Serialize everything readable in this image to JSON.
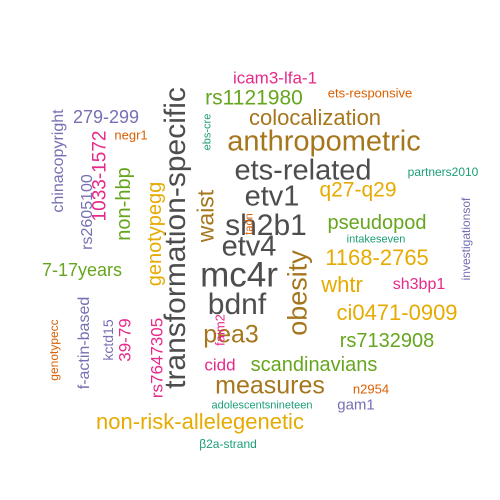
{
  "palette": {
    "gray": "#4d4d4d",
    "brown": "#a6761d",
    "green": "#66a61e",
    "gold": "#e6ab02",
    "magenta": "#e7298a",
    "orange": "#d95f02",
    "purple": "#7570b3",
    "teal": "#1b9e77"
  },
  "words": [
    {
      "text": "transformation-specific",
      "color": "gray",
      "rot": -90
    },
    {
      "text": "mc4r",
      "color": "gray",
      "rot": 0
    },
    {
      "text": "etv4",
      "color": "gray",
      "rot": 0
    },
    {
      "text": "sh2b1",
      "color": "gray",
      "rot": 0
    },
    {
      "text": "etv1",
      "color": "gray",
      "rot": 0
    },
    {
      "text": "ets-related",
      "color": "gray",
      "rot": 0
    },
    {
      "text": "bdnf",
      "color": "gray",
      "rot": 0
    },
    {
      "text": "anthropometric",
      "color": "brown",
      "rot": 0
    },
    {
      "text": "measures",
      "color": "brown",
      "rot": 0
    },
    {
      "text": "obesity",
      "color": "brown",
      "rot": -90
    },
    {
      "text": "colocalization",
      "color": "brown",
      "rot": 0
    },
    {
      "text": "waist",
      "color": "brown",
      "rot": -90
    },
    {
      "text": "pea3",
      "color": "brown",
      "rot": 0
    },
    {
      "text": "non-risk-allelegenetic",
      "color": "gold",
      "rot": 0
    },
    {
      "text": "ci0471-0909",
      "color": "gold",
      "rot": 0
    },
    {
      "text": "1168-2765",
      "color": "gold",
      "rot": 0
    },
    {
      "text": "q27-q29",
      "color": "gold",
      "rot": 0
    },
    {
      "text": "whtr",
      "color": "gold",
      "rot": 0
    },
    {
      "text": "genotypegg",
      "color": "gold",
      "rot": -90
    },
    {
      "text": "rs1121980",
      "color": "green",
      "rot": 0
    },
    {
      "text": "pseudopod",
      "color": "green",
      "rot": 0
    },
    {
      "text": "scandinavians",
      "color": "green",
      "rot": 0
    },
    {
      "text": "rs7132908",
      "color": "green",
      "rot": 0
    },
    {
      "text": "7-17years",
      "color": "green",
      "rot": 0
    },
    {
      "text": "non-hbp",
      "color": "green",
      "rot": -90
    },
    {
      "text": "icam3-lfa-1",
      "color": "magenta",
      "rot": 0
    },
    {
      "text": "1033-1572",
      "color": "magenta",
      "rot": -90
    },
    {
      "text": "rs7647305",
      "color": "magenta",
      "rot": -90
    },
    {
      "text": "39-79",
      "color": "magenta",
      "rot": -90
    },
    {
      "text": "cidd",
      "color": "magenta",
      "rot": 0
    },
    {
      "text": "sh3bp1",
      "color": "magenta",
      "rot": 0
    },
    {
      "text": "faim2",
      "color": "magenta",
      "rot": -90
    },
    {
      "text": "ets-responsive",
      "color": "orange",
      "rot": 0
    },
    {
      "text": "negr1",
      "color": "orange",
      "rot": 0
    },
    {
      "text": "n2954",
      "color": "orange",
      "rot": 0
    },
    {
      "text": "genotypecc",
      "color": "orange",
      "rot": -90
    },
    {
      "text": "tadn",
      "color": "orange",
      "rot": -90
    },
    {
      "text": "279-299",
      "color": "purple",
      "rot": 0
    },
    {
      "text": "chinacopyright",
      "color": "purple",
      "rot": -90
    },
    {
      "text": "rs2605100",
      "color": "purple",
      "rot": -90
    },
    {
      "text": "f-actin-based",
      "color": "purple",
      "rot": -90
    },
    {
      "text": "kctd15",
      "color": "purple",
      "rot": -90
    },
    {
      "text": "gam1",
      "color": "purple",
      "rot": 0
    },
    {
      "text": "investigationsof",
      "color": "purple",
      "rot": -90
    },
    {
      "text": "partners2010",
      "color": "teal",
      "rot": 0
    },
    {
      "text": "intakeseven",
      "color": "teal",
      "rot": 0
    },
    {
      "text": "adolescentsnineteen",
      "color": "teal",
      "rot": 0
    },
    {
      "text": "β2a-strand",
      "color": "teal",
      "rot": 0
    },
    {
      "text": "ebs-cre",
      "color": "teal",
      "rot": -90
    }
  ]
}
